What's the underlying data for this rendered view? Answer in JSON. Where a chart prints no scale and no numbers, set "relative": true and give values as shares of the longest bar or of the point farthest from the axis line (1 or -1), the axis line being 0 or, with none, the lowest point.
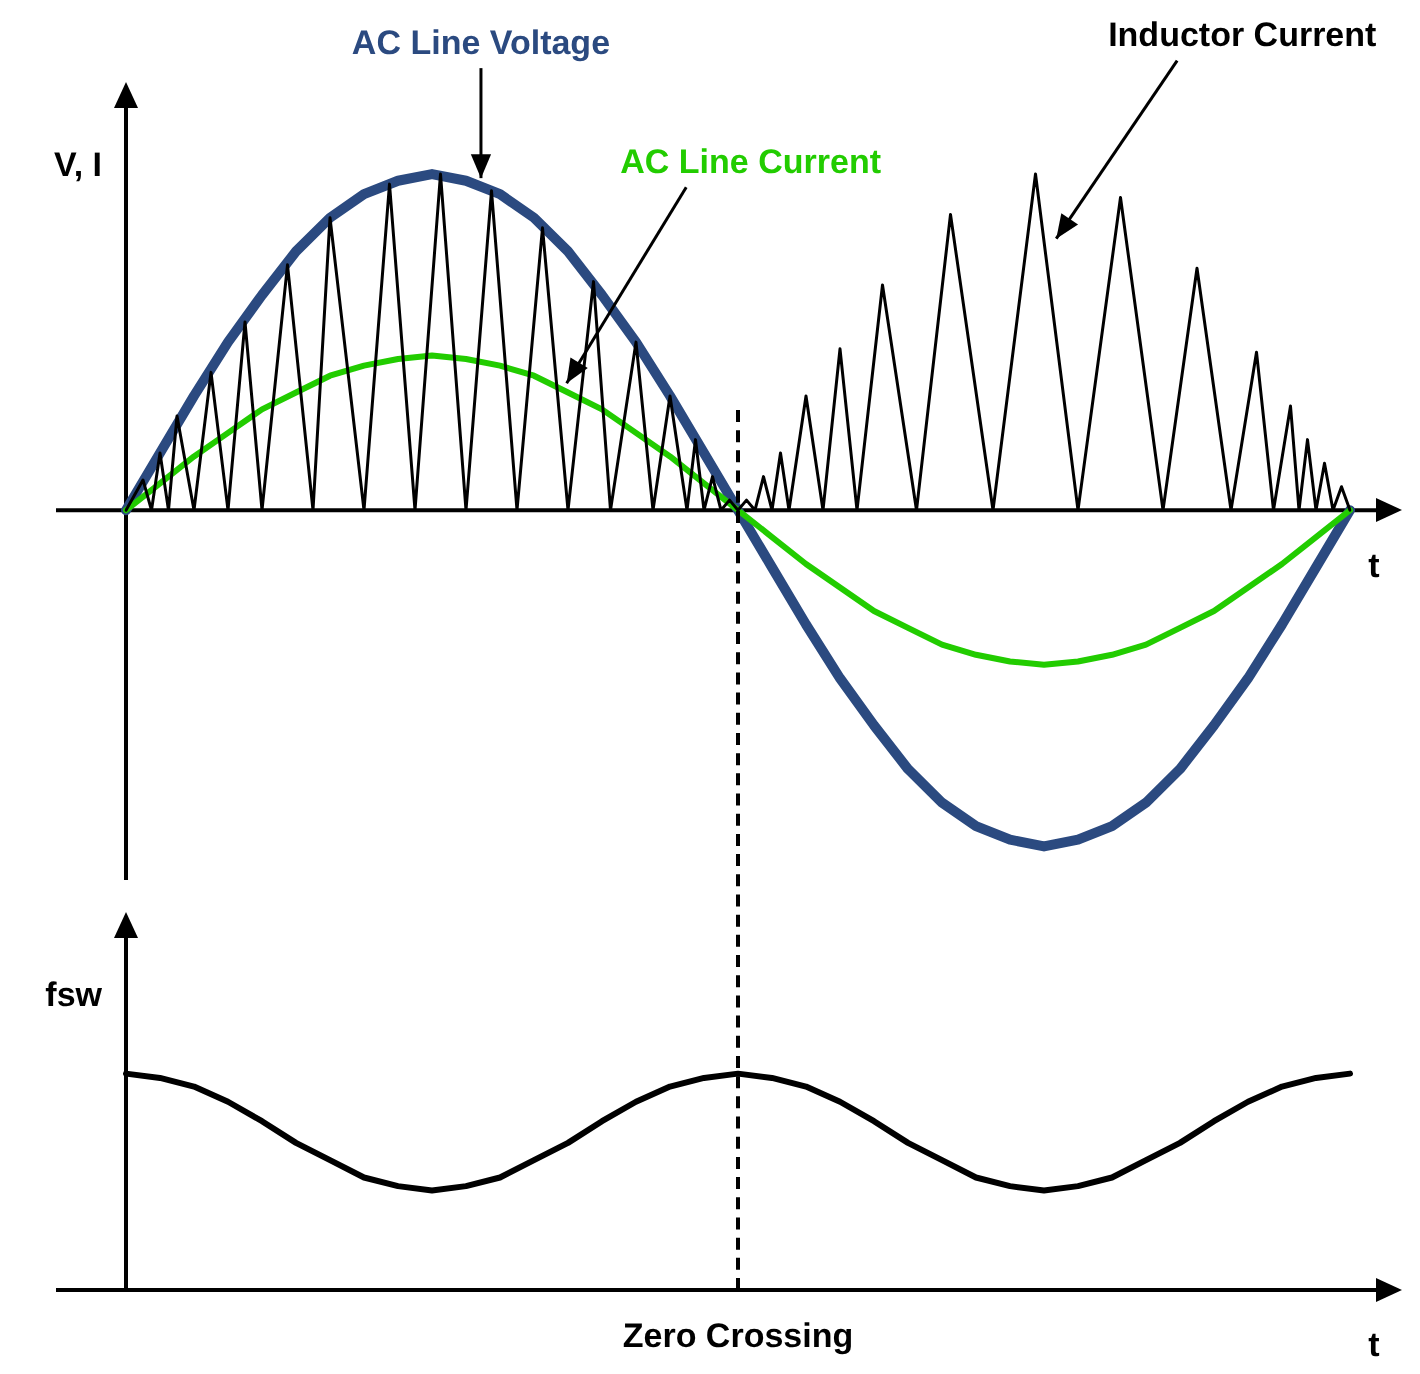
{
  "chart_data": [
    {
      "type": "line",
      "relative": true,
      "ylabel": "V, I",
      "xlabel": "t",
      "categories": [
        null,
        null,
        null,
        null,
        null,
        null,
        null,
        null,
        null,
        null,
        null,
        null,
        null,
        null,
        null,
        null,
        null,
        null,
        null,
        null,
        null,
        null,
        null,
        null,
        null,
        null,
        null,
        null,
        null,
        null,
        null,
        null,
        null,
        null,
        null,
        null,
        null,
        null,
        null,
        null,
        null,
        null,
        null,
        null,
        null,
        null,
        null,
        null,
        null,
        null,
        null,
        null,
        null,
        null,
        null,
        null,
        null,
        null,
        null,
        null,
        null,
        null,
        null,
        null,
        null,
        null,
        null,
        null,
        null,
        null,
        null,
        null,
        null,
        null,
        null,
        null,
        null,
        null,
        null,
        null,
        null,
        null,
        null,
        null,
        null,
        null,
        null,
        null,
        null,
        null,
        null,
        null,
        null,
        null,
        null,
        null,
        null,
        null,
        null,
        null,
        null,
        null,
        null,
        null,
        null,
        null,
        null,
        null,
        null,
        null,
        null,
        null,
        null,
        null,
        null,
        null,
        null,
        null,
        null,
        null,
        null,
        null,
        null,
        null,
        null,
        null,
        null,
        null,
        null,
        null,
        null,
        null,
        null,
        null,
        null,
        null,
        null,
        null,
        null,
        null,
        null,
        null,
        null,
        null,
        null
      ],
      "annotations": [
        "AC Line Voltage",
        "AC Line Current",
        "Inductor Current"
      ],
      "series": [
        {
          "color": "#000000",
          "values": [
            0,
            null,
            0.09,
            0,
            0.17,
            0,
            0.28,
            null,
            0,
            null,
            0.41,
            null,
            0,
            null,
            0.56,
            null,
            0,
            null,
            null,
            0.73,
            null,
            null,
            0,
            null,
            0.87,
            null,
            null,
            null,
            0,
            null,
            null,
            0.97,
            null,
            null,
            0,
            null,
            null,
            1,
            null,
            null,
            0,
            null,
            null,
            0.95,
            null,
            null,
            0,
            null,
            null,
            0.84,
            null,
            null,
            0,
            null,
            null,
            0.68,
            null,
            0,
            null,
            null,
            0.5,
            null,
            0,
            null,
            0.34,
            null,
            0,
            0.21,
            0,
            0.1,
            0,
            0.03,
            0,
            0.03,
            0,
            0.1,
            0,
            0.17,
            0,
            null,
            0.34,
            null,
            0,
            null,
            0.48,
            null,
            0,
            null,
            null,
            0.67,
            null,
            null,
            null,
            0,
            null,
            null,
            null,
            0.88,
            null,
            null,
            null,
            null,
            0,
            null,
            null,
            null,
            null,
            1,
            null,
            null,
            null,
            null,
            0,
            null,
            null,
            null,
            null,
            0.93,
            null,
            null,
            null,
            null,
            0,
            null,
            null,
            null,
            0.72,
            null,
            null,
            null,
            0,
            null,
            null,
            0.47,
            null,
            0,
            null,
            0.31,
            0,
            0.21,
            0,
            0.14,
            0,
            0.07,
            0
          ]
        },
        {
          "color": "#22cc00",
          "values": [
            0,
            null,
            null,
            null,
            0.08,
            null,
            null,
            null,
            0.16,
            null,
            null,
            null,
            0.23,
            null,
            null,
            null,
            0.3,
            null,
            null,
            null,
            0.35,
            null,
            null,
            null,
            0.4,
            null,
            null,
            null,
            0.43,
            null,
            null,
            null,
            0.45,
            null,
            null,
            null,
            0.46,
            null,
            null,
            null,
            0.45,
            null,
            null,
            null,
            0.43,
            null,
            null,
            null,
            0.4,
            null,
            null,
            null,
            0.35,
            null,
            null,
            null,
            0.3,
            null,
            null,
            null,
            0.23,
            null,
            null,
            null,
            0.16,
            null,
            null,
            null,
            0.08,
            null,
            null,
            null,
            0,
            null,
            null,
            null,
            -0.08,
            null,
            null,
            null,
            -0.16,
            null,
            null,
            null,
            -0.23,
            null,
            null,
            null,
            -0.3,
            null,
            null,
            null,
            -0.35,
            null,
            null,
            null,
            -0.4,
            null,
            null,
            null,
            -0.43,
            null,
            null,
            null,
            -0.45,
            null,
            null,
            null,
            -0.46,
            null,
            null,
            null,
            -0.45,
            null,
            null,
            null,
            -0.43,
            null,
            null,
            null,
            -0.4,
            null,
            null,
            null,
            -0.35,
            null,
            null,
            null,
            -0.3,
            null,
            null,
            null,
            -0.23,
            null,
            null,
            null,
            -0.16,
            null,
            null,
            null,
            -0.08,
            null,
            null,
            null,
            0
          ]
        },
        {
          "color": "#2b4a80",
          "values": [
            0,
            null,
            null,
            null,
            0.17,
            null,
            null,
            null,
            0.34,
            null,
            null,
            null,
            0.5,
            null,
            null,
            null,
            0.64,
            null,
            null,
            null,
            0.77,
            null,
            null,
            null,
            0.87,
            null,
            null,
            null,
            0.94,
            null,
            null,
            null,
            0.98,
            null,
            null,
            null,
            1,
            null,
            null,
            null,
            0.98,
            null,
            null,
            null,
            0.94,
            null,
            null,
            null,
            0.87,
            null,
            null,
            null,
            0.77,
            null,
            null,
            null,
            0.64,
            null,
            null,
            null,
            0.5,
            null,
            null,
            null,
            0.34,
            null,
            null,
            null,
            0.17,
            null,
            null,
            null,
            0,
            null,
            null,
            null,
            -0.17,
            null,
            null,
            null,
            -0.34,
            null,
            null,
            null,
            -0.5,
            null,
            null,
            null,
            -0.64,
            null,
            null,
            null,
            -0.77,
            null,
            null,
            null,
            -0.87,
            null,
            null,
            null,
            -0.94,
            null,
            null,
            null,
            -0.98,
            null,
            null,
            null,
            -1,
            null,
            null,
            null,
            -0.98,
            null,
            null,
            null,
            -0.94,
            null,
            null,
            null,
            -0.87,
            null,
            null,
            null,
            -0.77,
            null,
            null,
            null,
            -0.64,
            null,
            null,
            null,
            -0.5,
            null,
            null,
            null,
            -0.34,
            null,
            null,
            null,
            -0.17,
            null,
            null,
            null,
            0
          ]
        }
      ]
    },
    {
      "type": "line",
      "relative": true,
      "ylabel": "fsw",
      "xlabel": "t",
      "categories": [
        null,
        null,
        null,
        null,
        null,
        null,
        null,
        null,
        null,
        null,
        null,
        null,
        null,
        null,
        null,
        null,
        null,
        null,
        null,
        null,
        null,
        null,
        null,
        null,
        null,
        null,
        null,
        null,
        null,
        null,
        null,
        null,
        null,
        null,
        null,
        null,
        null
      ],
      "annotations": [
        "Zero Crossing"
      ],
      "series": [
        {
          "color": "#000000",
          "values": [
            1,
            0.98,
            0.94,
            0.87,
            0.78,
            0.68,
            0.6,
            0.52,
            0.48,
            0.46,
            0.48,
            0.52,
            0.6,
            0.68,
            0.78,
            0.87,
            0.94,
            0.98,
            1,
            0.98,
            0.94,
            0.87,
            0.78,
            0.68,
            0.6,
            0.52,
            0.48,
            0.46,
            0.48,
            0.52,
            0.6,
            0.68,
            0.78,
            0.87,
            0.94,
            0.98,
            1
          ]
        }
      ]
    }
  ]
}
